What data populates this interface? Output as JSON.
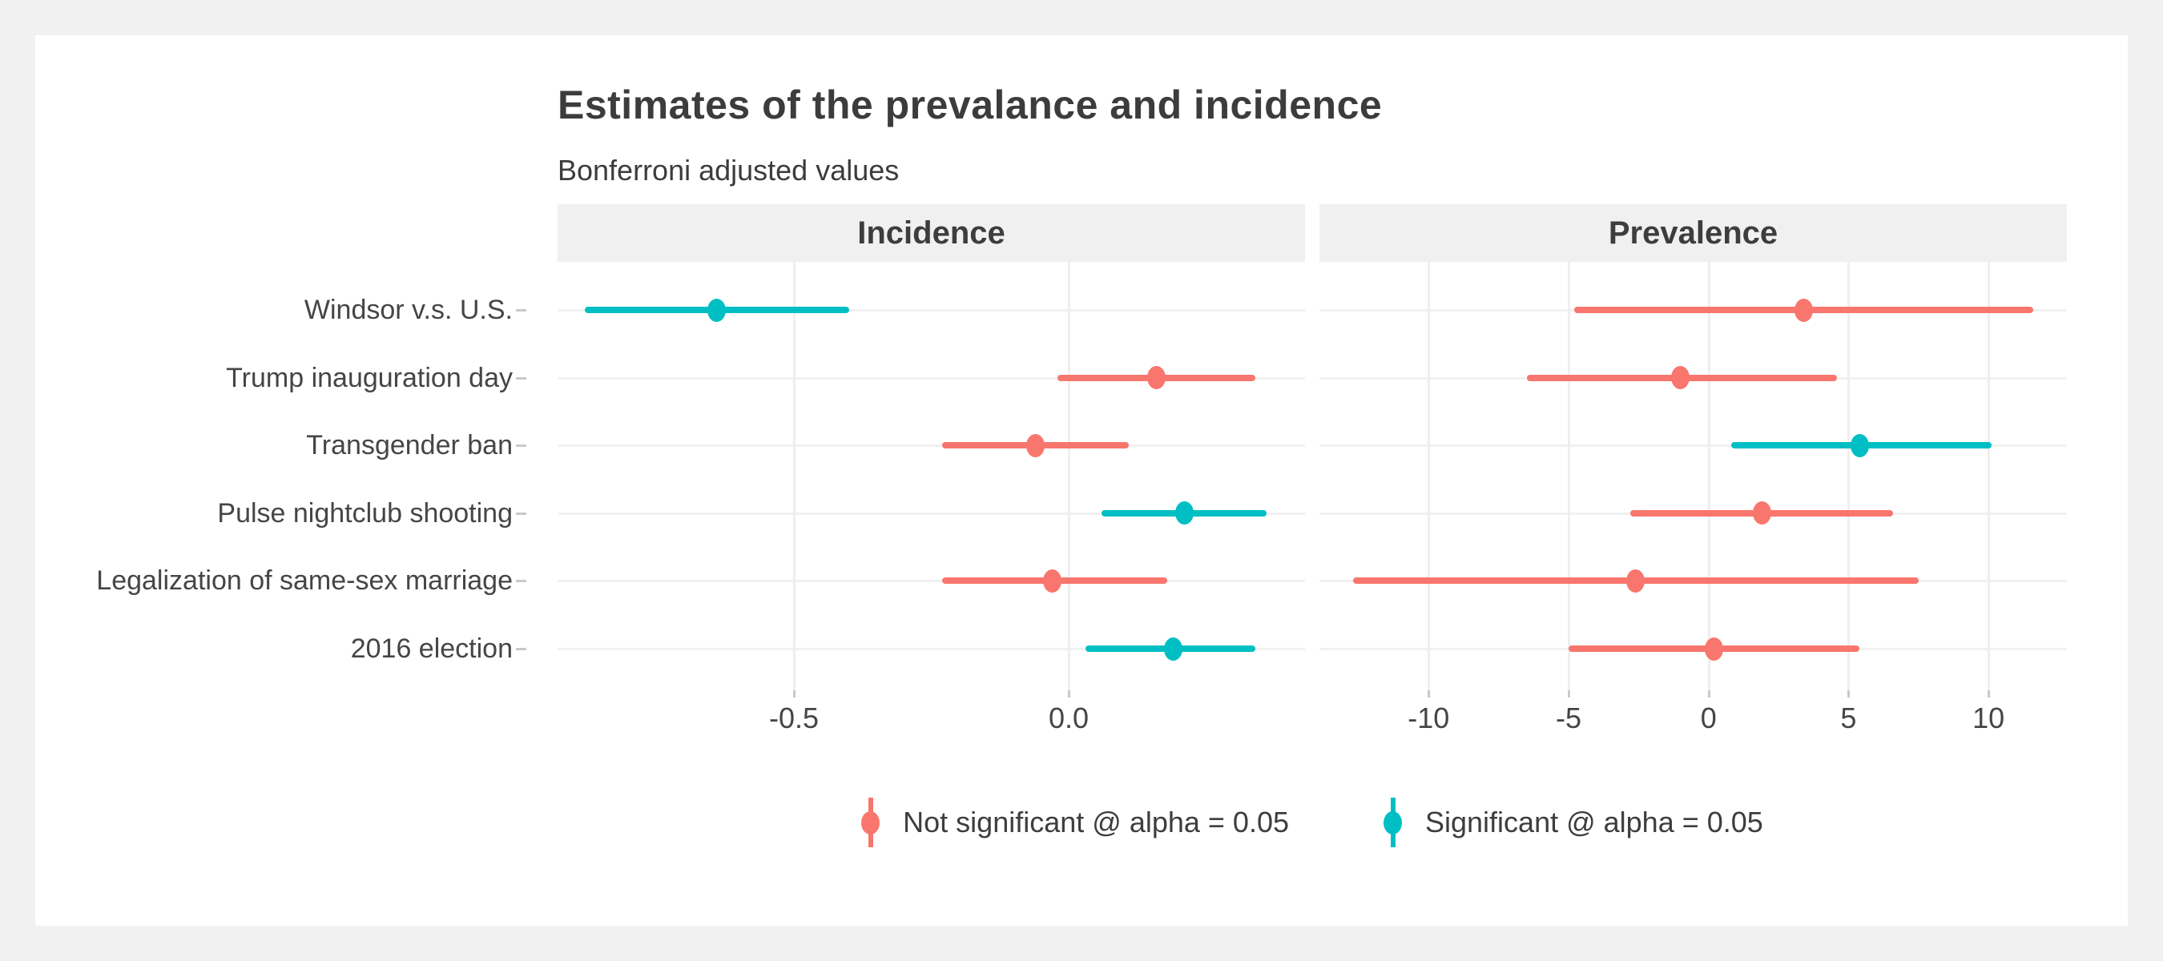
{
  "page": {
    "background": "#F1F1F1",
    "card_background": "#FFFFFF"
  },
  "header": {
    "title": "Estimates of the prevalance and incidence",
    "subtitle": "Bonferroni adjusted values"
  },
  "legend": {
    "items": [
      {
        "label": "Not significant @ alpha = 0.05",
        "color": "#F8766D"
      },
      {
        "label": "Significant @ alpha = 0.05",
        "color": "#00BFC4"
      }
    ]
  },
  "chart_data": {
    "type": "pointrange",
    "orientation": "horizontal",
    "grid": "major-only",
    "legend_position": "bottom",
    "colors": {
      "not_significant": "#F8766D",
      "significant": "#00BFC4"
    },
    "categories": [
      "Windsor v.s. U.S.",
      "Trump inauguration day",
      "Transgender ban",
      "Pulse nightclub shooting",
      "Legalization of same-sex marriage",
      "2016 election"
    ],
    "facets": [
      {
        "label": "Incidence",
        "xlim": [
          -0.93,
          0.43
        ],
        "xticks": [
          -0.5,
          0.0
        ],
        "xtick_labels": [
          "-0.5",
          "0.0"
        ],
        "zero_line": 0,
        "points": [
          {
            "estimate": -0.64,
            "ci_low": -0.88,
            "ci_high": -0.4,
            "significant": true
          },
          {
            "estimate": 0.16,
            "ci_low": -0.02,
            "ci_high": 0.34,
            "significant": false
          },
          {
            "estimate": -0.06,
            "ci_low": -0.23,
            "ci_high": 0.11,
            "significant": false
          },
          {
            "estimate": 0.21,
            "ci_low": 0.06,
            "ci_high": 0.36,
            "significant": true
          },
          {
            "estimate": -0.03,
            "ci_low": -0.23,
            "ci_high": 0.18,
            "significant": false
          },
          {
            "estimate": 0.19,
            "ci_low": 0.03,
            "ci_high": 0.34,
            "significant": true
          }
        ]
      },
      {
        "label": "Prevalence",
        "xlim": [
          -13.9,
          12.8
        ],
        "xticks": [
          -10,
          -5,
          0,
          5,
          10
        ],
        "xtick_labels": [
          "-10",
          "-5",
          "0",
          "5",
          "10"
        ],
        "zero_line": 0,
        "points": [
          {
            "estimate": 3.4,
            "ci_low": -4.8,
            "ci_high": 11.6,
            "significant": false
          },
          {
            "estimate": -1.0,
            "ci_low": -6.5,
            "ci_high": 4.6,
            "significant": false
          },
          {
            "estimate": 5.4,
            "ci_low": 0.8,
            "ci_high": 10.1,
            "significant": true
          },
          {
            "estimate": 1.9,
            "ci_low": -2.8,
            "ci_high": 6.6,
            "significant": false
          },
          {
            "estimate": -2.6,
            "ci_low": -12.7,
            "ci_high": 7.5,
            "significant": false
          },
          {
            "estimate": 0.2,
            "ci_low": -5.0,
            "ci_high": 5.4,
            "significant": false
          }
        ]
      }
    ]
  }
}
